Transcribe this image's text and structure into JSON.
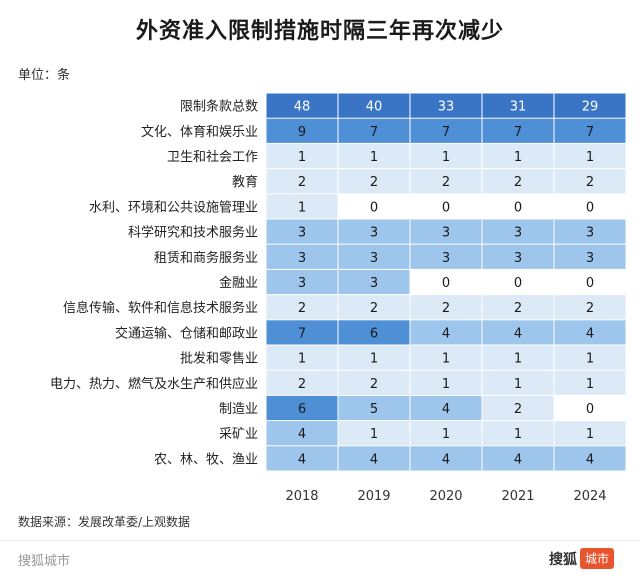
{
  "title": "外资准入限制措施时隔三年再次减少",
  "unit": "单位：条",
  "source": "数据来源：发展改革委/上观数据",
  "watermark_left": "搜狐城市",
  "watermark_brand": "搜狐",
  "watermark_badge": "城市",
  "colors": {
    "zero": "#ffffff",
    "light": "#dceaf7",
    "mid": "#9ec6ec",
    "dark": "#4f8fd6",
    "header": "#3a74c4"
  },
  "chart_data": {
    "type": "heatmap",
    "title": "外资准入限制措施时隔三年再次减少",
    "columns": [
      "2018",
      "2019",
      "2020",
      "2021",
      "2024"
    ],
    "rows": [
      {
        "label": "限制条款总数",
        "values": [
          48,
          40,
          33,
          31,
          29
        ]
      },
      {
        "label": "文化、体育和娱乐业",
        "values": [
          9,
          7,
          7,
          7,
          7
        ]
      },
      {
        "label": "卫生和社会工作",
        "values": [
          1,
          1,
          1,
          1,
          1
        ]
      },
      {
        "label": "教育",
        "values": [
          2,
          2,
          2,
          2,
          2
        ]
      },
      {
        "label": "水利、环境和公共设施管理业",
        "values": [
          1,
          0,
          0,
          0,
          0
        ]
      },
      {
        "label": "科学研究和技术服务业",
        "values": [
          3,
          3,
          3,
          3,
          3
        ]
      },
      {
        "label": "租赁和商务服务业",
        "values": [
          3,
          3,
          3,
          3,
          3
        ]
      },
      {
        "label": "金融业",
        "values": [
          3,
          3,
          0,
          0,
          0
        ]
      },
      {
        "label": "信息传输、软件和信息技术服务业",
        "values": [
          2,
          2,
          2,
          2,
          2
        ]
      },
      {
        "label": "交通运输、仓储和邮政业",
        "values": [
          7,
          6,
          4,
          4,
          4
        ]
      },
      {
        "label": "批发和零售业",
        "values": [
          1,
          1,
          1,
          1,
          1
        ]
      },
      {
        "label": "电力、热力、燃气及水生产和供应业",
        "values": [
          2,
          2,
          1,
          1,
          1
        ]
      },
      {
        "label": "制造业",
        "values": [
          6,
          5,
          4,
          2,
          0
        ]
      },
      {
        "label": "采矿业",
        "values": [
          4,
          1,
          1,
          1,
          1
        ]
      },
      {
        "label": "农、林、牧、渔业",
        "values": [
          4,
          4,
          4,
          4,
          4
        ]
      }
    ]
  }
}
